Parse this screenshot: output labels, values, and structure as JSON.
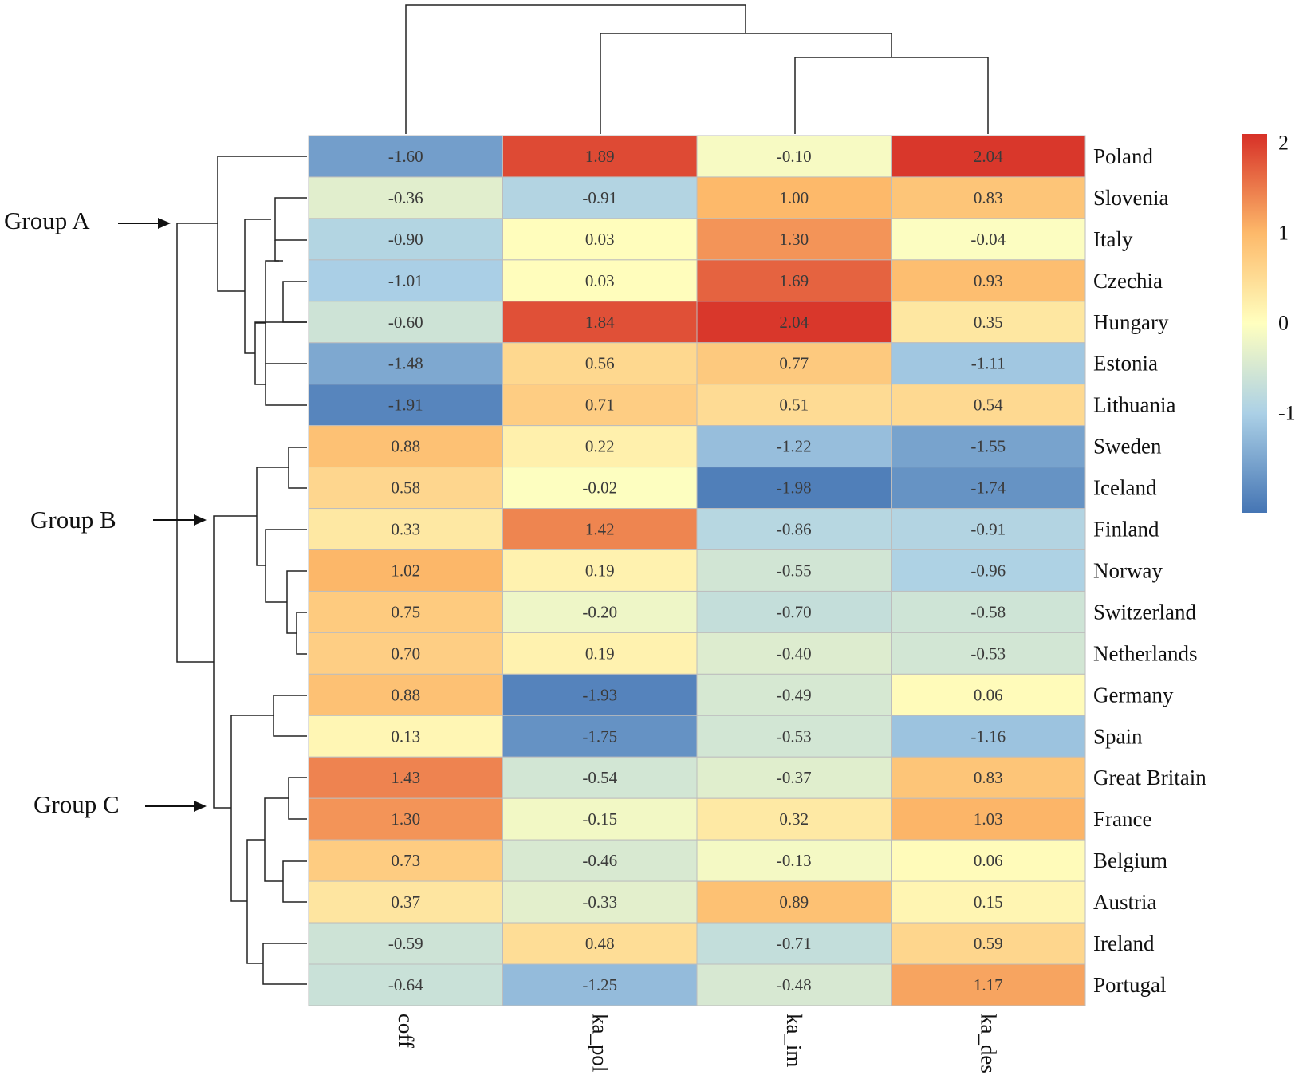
{
  "chart_data": {
    "type": "heatmap",
    "title": "",
    "columns": [
      "coff",
      "ka_pol",
      "ka_im",
      "ka_des"
    ],
    "rows": [
      "Poland",
      "Slovenia",
      "Italy",
      "Czechia",
      "Hungary",
      "Estonia",
      "Lithuania",
      "Sweden",
      "Iceland",
      "Finland",
      "Norway",
      "Switzerland",
      "Netherlands",
      "Germany",
      "Spain",
      "Great Britain",
      "France",
      "Belgium",
      "Austria",
      "Ireland",
      "Portugal"
    ],
    "values": [
      [
        -1.6,
        1.89,
        -0.1,
        2.04
      ],
      [
        -0.36,
        -0.91,
        1.0,
        0.83
      ],
      [
        -0.9,
        0.03,
        1.3,
        -0.04
      ],
      [
        -1.01,
        0.03,
        1.69,
        0.93
      ],
      [
        -0.6,
        1.84,
        2.04,
        0.35
      ],
      [
        -1.48,
        0.56,
        0.77,
        -1.11
      ],
      [
        -1.91,
        0.71,
        0.51,
        0.54
      ],
      [
        0.88,
        0.22,
        -1.22,
        -1.55
      ],
      [
        0.58,
        -0.02,
        -1.98,
        -1.74
      ],
      [
        0.33,
        1.42,
        -0.86,
        -0.91
      ],
      [
        1.02,
        0.19,
        -0.55,
        -0.96
      ],
      [
        0.75,
        -0.2,
        -0.7,
        -0.58
      ],
      [
        0.7,
        0.19,
        -0.4,
        -0.53
      ],
      [
        0.88,
        -1.93,
        -0.49,
        0.06
      ],
      [
        0.13,
        -1.75,
        -0.53,
        -1.16
      ],
      [
        1.43,
        -0.54,
        -0.37,
        0.83
      ],
      [
        1.3,
        -0.15,
        0.32,
        1.03
      ],
      [
        0.73,
        -0.46,
        -0.13,
        0.06
      ],
      [
        0.37,
        -0.33,
        0.89,
        0.15
      ],
      [
        -0.59,
        0.48,
        -0.71,
        0.59
      ],
      [
        -0.64,
        -1.25,
        -0.48,
        1.17
      ]
    ],
    "value_labels": [
      [
        "-1.60",
        "1.89",
        "-0.10",
        "2.04"
      ],
      [
        "-0.36",
        "-0.91",
        "1.00",
        "0.83"
      ],
      [
        "-0.90",
        "0.03",
        "1.30",
        "-0.04"
      ],
      [
        "-1.01",
        "0.03",
        "1.69",
        "0.93"
      ],
      [
        "-0.60",
        "1.84",
        "2.04",
        "0.35"
      ],
      [
        "-1.48",
        "0.56",
        "0.77",
        "-1.11"
      ],
      [
        "-1.91",
        "0.71",
        "0.51",
        "0.54"
      ],
      [
        "0.88",
        "0.22",
        "-1.22",
        "-1.55"
      ],
      [
        "0.58",
        "-0.02",
        "-1.98",
        "-1.74"
      ],
      [
        "0.33",
        "1.42",
        "-0.86",
        "-0.91"
      ],
      [
        "1.02",
        "0.19",
        "-0.55",
        "-0.96"
      ],
      [
        "0.75",
        "-0.20",
        "-0.70",
        "-0.58"
      ],
      [
        "0.70",
        "0.19",
        "-0.40",
        "-0.53"
      ],
      [
        "0.88",
        "-1.93",
        "-0.49",
        "0.06"
      ],
      [
        "0.13",
        "-1.75",
        "-0.53",
        "-1.16"
      ],
      [
        "1.43",
        "-0.54",
        "-0.37",
        "0.83"
      ],
      [
        "1.30",
        "-0.15",
        "0.32",
        "1.03"
      ],
      [
        "0.73",
        "-0.46",
        "-0.13",
        "0.06"
      ],
      [
        "0.37",
        "-0.33",
        "0.89",
        "0.15"
      ],
      [
        "-0.59",
        "0.48",
        "-0.71",
        "0.59"
      ],
      [
        "-0.64",
        "-1.25",
        "-0.48",
        "1.17"
      ]
    ],
    "color_scale": {
      "min": -2.1,
      "max": 2.1,
      "stops": [
        {
          "value": -2.1,
          "color": "#4575b4"
        },
        {
          "value": -1.0,
          "color": "#abd0e6"
        },
        {
          "value": 0.0,
          "color": "#ffffbf"
        },
        {
          "value": 1.0,
          "color": "#fdb96a"
        },
        {
          "value": 2.1,
          "color": "#d73027"
        }
      ],
      "ticks": [
        "2",
        "1",
        "0",
        "-1"
      ]
    },
    "groups": [
      "Group A",
      "Group B",
      "Group C"
    ],
    "row_dendrogram": true,
    "column_dendrogram": true,
    "legend_position": "top-right"
  }
}
